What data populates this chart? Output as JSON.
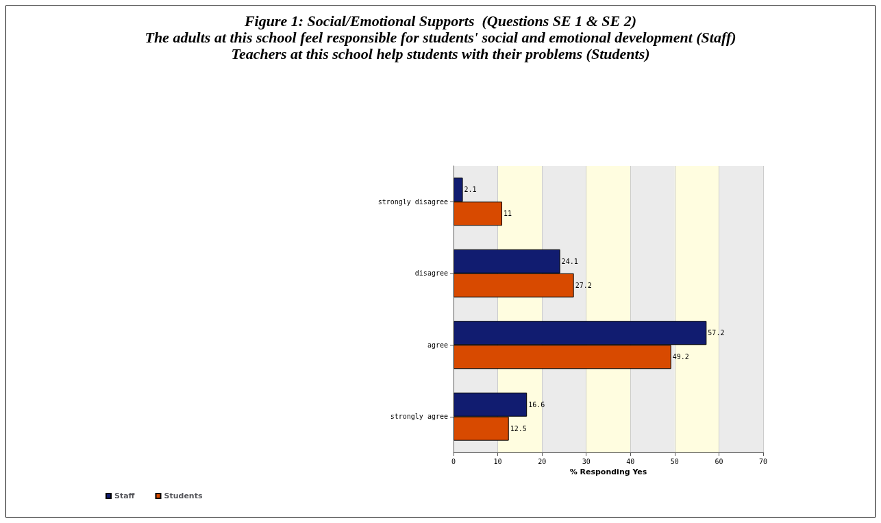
{
  "chart_data": {
    "type": "bar",
    "orientation": "horizontal",
    "title": "Figure 1: Social/Emotional Supports  (Questions SE 1 & SE 2)",
    "subtitle": "The adults at this school feel responsible for students' social and emotional development (Staff)\nTeachers at this school help students with their problems (Students)",
    "categories": [
      "strongly disagree",
      "disagree",
      "agree",
      "strongly agree"
    ],
    "series": [
      {
        "name": "Staff",
        "color": "#111c70",
        "values": [
          2.1,
          24.1,
          57.2,
          16.6
        ]
      },
      {
        "name": "Students",
        "color": "#d84a00",
        "values": [
          11,
          27.2,
          49.2,
          12.5
        ]
      }
    ],
    "xlabel": "% Responding Yes",
    "xlim": [
      0,
      70
    ],
    "xticks": [
      0,
      10,
      20,
      30,
      40,
      50,
      60,
      70
    ],
    "grid": "x",
    "data_labels": true,
    "legend": "bottom left"
  }
}
